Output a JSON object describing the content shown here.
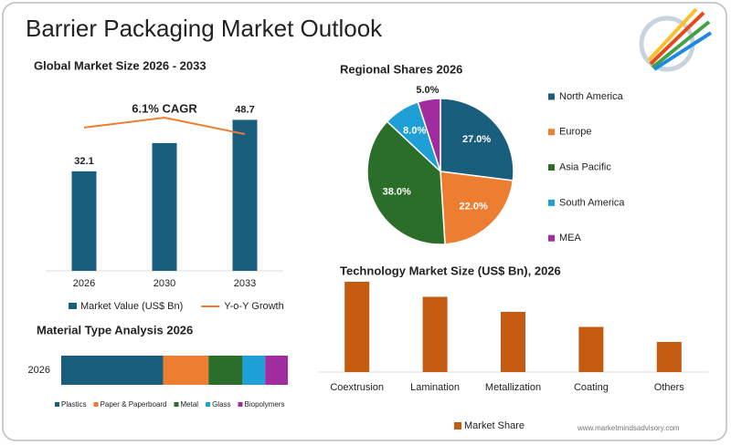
{
  "title": "Barrier Packaging Market Outlook",
  "source": "www.marketmindsadvisory.com",
  "chart_data": [
    {
      "type": "combo",
      "title": "Global Market Size 2026 - 2033",
      "annotation": "6.1% CAGR",
      "categories": [
        "2026",
        "2030",
        "2033"
      ],
      "ylim": [
        0,
        55
      ],
      "series": [
        {
          "name": "Market Value (US$ Bn)",
          "type": "bar",
          "color": "#1a5e7e",
          "values": [
            32.1,
            41.2,
            48.7
          ],
          "value_labels": [
            "32.1",
            null,
            "48.7"
          ]
        },
        {
          "name": "Y-o-Y Growth",
          "type": "line",
          "color": "#ed7d31",
          "values": [
            46.2,
            49.4,
            44.1
          ]
        }
      ]
    },
    {
      "type": "pie",
      "title": "Regional Shares 2026",
      "categories": [
        "North America",
        "Europe",
        "Asia Pacific",
        "South America",
        "MEA"
      ],
      "values": [
        27.0,
        22.0,
        38.0,
        8.0,
        5.0
      ],
      "value_labels": [
        "27.0%",
        "22.0%",
        "38.0%",
        "8.0%",
        "5.0%"
      ],
      "colors": [
        "#1a5e7e",
        "#ed7d31",
        "#2a6e2a",
        "#1e9fd6",
        "#a02ca0"
      ]
    },
    {
      "type": "stacked-bar",
      "title": "Material Type Analysis 2026",
      "orientation": "horizontal",
      "categories": [
        "2026"
      ],
      "xlim": [
        0,
        100
      ],
      "series": [
        {
          "name": "Plastics",
          "color": "#1a5e7e",
          "values": [
            45
          ]
        },
        {
          "name": "Paper & Paperboard",
          "color": "#ed7d31",
          "values": [
            20
          ]
        },
        {
          "name": "Metal",
          "color": "#2a6e2a",
          "values": [
            15
          ]
        },
        {
          "name": "Glass",
          "color": "#1e9fd6",
          "values": [
            10
          ]
        },
        {
          "name": "Biopolymers",
          "color": "#a02ca0",
          "values": [
            10
          ]
        }
      ]
    },
    {
      "type": "bar",
      "title": "Technology Market Size (US$ Bn), 2026",
      "categories": [
        "Coextrusion",
        "Lamination",
        "Metallization",
        "Coating",
        "Others"
      ],
      "ylim": [
        0,
        6.5
      ],
      "series": [
        {
          "name": "Market Share",
          "color": "#c55a11",
          "values": [
            6.0,
            5.0,
            4.0,
            3.0,
            2.0
          ]
        }
      ]
    }
  ]
}
